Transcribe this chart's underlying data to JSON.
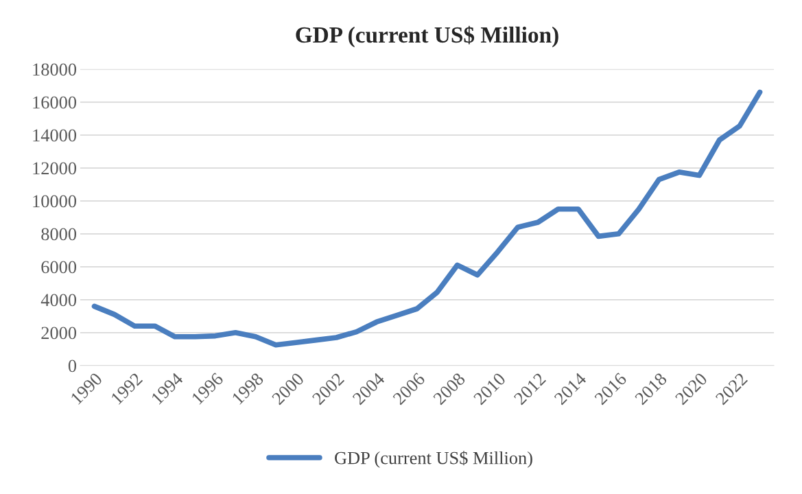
{
  "chart_data": {
    "type": "line",
    "title": "GDP (current US$ Million)",
    "categories": [
      "1990",
      null,
      "1992",
      null,
      "1994",
      null,
      "1996",
      null,
      "1998",
      null,
      "2000",
      null,
      "2002",
      null,
      "2004",
      null,
      "2006",
      null,
      "2008",
      null,
      "2010",
      null,
      "2012",
      null,
      "2014",
      null,
      "2016",
      null,
      "2018",
      null,
      "2020",
      null,
      "2022",
      null
    ],
    "series": [
      {
        "name": "GDP (current US$ Million)",
        "color": "#4a7ebf",
        "values": [
          3600,
          3100,
          2400,
          2400,
          1750,
          1750,
          1800,
          2000,
          1750,
          1250,
          1400,
          1550,
          1700,
          2050,
          2650,
          3050,
          3450,
          4450,
          6100,
          5500,
          6900,
          8400,
          8700,
          9500,
          9500,
          7850,
          8000,
          9500,
          11300,
          11750,
          11550,
          13700,
          14550,
          16600
        ]
      }
    ],
    "ylim": [
      0,
      18000
    ],
    "yticks": [
      0,
      2000,
      4000,
      6000,
      8000,
      10000,
      12000,
      14000,
      16000,
      18000
    ],
    "grid": "y",
    "legend": "bottom",
    "marker": "none",
    "line_style": "solid"
  }
}
